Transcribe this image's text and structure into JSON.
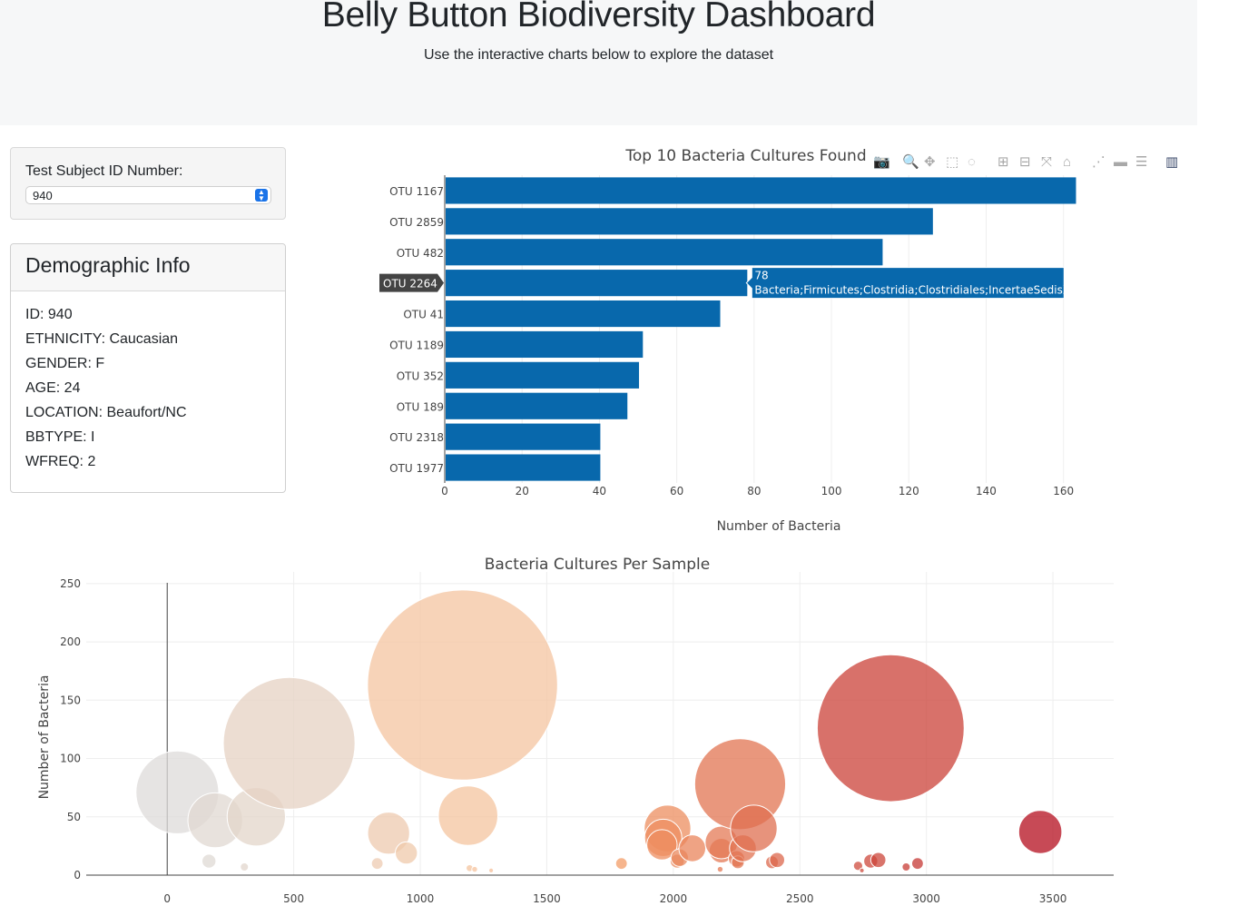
{
  "header": {
    "title": "Belly Button Biodiversity Dashboard",
    "subtitle": "Use the interactive charts below to explore the dataset"
  },
  "selector": {
    "label": "Test Subject ID Number:",
    "selected": "940"
  },
  "demographics": {
    "title": "Demographic Info",
    "rows": [
      "ID: 940",
      "ETHNICITY: Caucasian",
      "GENDER: F",
      "AGE: 24",
      "LOCATION: Beaufort/NC",
      "BBTYPE: I",
      "WFREQ: 2"
    ]
  },
  "modebar_icons": [
    "camera-icon",
    "zoom-icon",
    "pan-icon",
    "box-select-icon",
    "lasso-icon",
    "zoom-in-icon",
    "zoom-out-icon",
    "autoscale-icon",
    "home-icon",
    "spike-lines-icon",
    "hover-closest-icon",
    "hover-compare-icon",
    "plotly-logo-icon"
  ],
  "chart_data": [
    {
      "type": "bar",
      "orientation": "horizontal",
      "title": "Top 10 Bacteria Cultures Found",
      "xlabel": "Number of Bacteria",
      "ylabel": "",
      "xlim": [
        0,
        165
      ],
      "xticks": [
        0,
        20,
        40,
        60,
        80,
        100,
        120,
        140,
        160
      ],
      "categories": [
        "OTU 1167",
        "OTU 2859",
        "OTU 482",
        "OTU 2264",
        "OTU 41",
        "OTU 1189",
        "OTU 352",
        "OTU 189",
        "OTU 2318",
        "OTU 1977"
      ],
      "values": [
        163,
        126,
        113,
        78,
        71,
        51,
        50,
        47,
        40,
        40
      ],
      "color": "#0868ac",
      "hover": {
        "category": "OTU 2264",
        "value_text": "78",
        "label_text": "Bacteria;Firmicutes;Clostridia;Clostridiales;IncertaeSedisXI"
      }
    },
    {
      "type": "scatter",
      "mode": "bubble",
      "title": "Bacteria Cultures Per Sample",
      "xlabel": "",
      "ylabel": "Number of Bacteria",
      "xlim": [
        -320,
        3740
      ],
      "ylim": [
        0,
        260
      ],
      "xticks": [
        0,
        500,
        1000,
        1500,
        2000,
        2500,
        3000,
        3500
      ],
      "yticks": [
        0,
        50,
        100,
        150,
        200,
        250
      ],
      "colorscale_range": [
        0,
        3500
      ],
      "points": [
        {
          "x": 40,
          "y": 71
        },
        {
          "x": 190,
          "y": 47
        },
        {
          "x": 165,
          "y": 12
        },
        {
          "x": 305,
          "y": 7
        },
        {
          "x": 352,
          "y": 50
        },
        {
          "x": 482,
          "y": 113
        },
        {
          "x": 830,
          "y": 10
        },
        {
          "x": 875,
          "y": 36
        },
        {
          "x": 945,
          "y": 19
        },
        {
          "x": 1167,
          "y": 163
        },
        {
          "x": 1189,
          "y": 51
        },
        {
          "x": 1195,
          "y": 6
        },
        {
          "x": 1215,
          "y": 5
        },
        {
          "x": 1280,
          "y": 4
        },
        {
          "x": 1795,
          "y": 10
        },
        {
          "x": 1977,
          "y": 40
        },
        {
          "x": 1960,
          "y": 32
        },
        {
          "x": 1955,
          "y": 26
        },
        {
          "x": 2015,
          "y": 12
        },
        {
          "x": 2025,
          "y": 15
        },
        {
          "x": 2075,
          "y": 23
        },
        {
          "x": 2185,
          "y": 5
        },
        {
          "x": 2190,
          "y": 21
        },
        {
          "x": 2190,
          "y": 28
        },
        {
          "x": 2250,
          "y": 14
        },
        {
          "x": 2255,
          "y": 11
        },
        {
          "x": 2264,
          "y": 78
        },
        {
          "x": 2275,
          "y": 23
        },
        {
          "x": 2318,
          "y": 40
        },
        {
          "x": 2390,
          "y": 11
        },
        {
          "x": 2410,
          "y": 13
        },
        {
          "x": 2730,
          "y": 8
        },
        {
          "x": 2745,
          "y": 4
        },
        {
          "x": 2780,
          "y": 12
        },
        {
          "x": 2810,
          "y": 13
        },
        {
          "x": 2859,
          "y": 126
        },
        {
          "x": 2920,
          "y": 7
        },
        {
          "x": 2965,
          "y": 10
        },
        {
          "x": 3450,
          "y": 37
        }
      ]
    }
  ]
}
